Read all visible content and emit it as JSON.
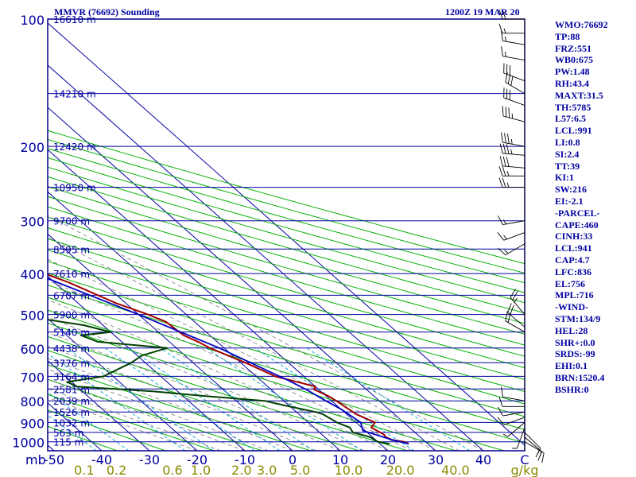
{
  "header": {
    "title": "MMVR (76692) Sounding",
    "time": "1200Z 19 MAR 20"
  },
  "indices": [
    "WMO:76692",
    "TP:88",
    "FRZ:551",
    "WB0:675",
    "PW:1.48",
    "RH:43.4",
    "MAXT:31.5",
    "TH:5785",
    "L57:6.5",
    "LCL:991",
    "LI:0.8",
    "SI:2.4",
    "TT:39",
    "KI:1",
    "SW:216",
    "EI:-2.1",
    "-PARCEL-",
    "CAPE:460",
    "CINH:33",
    "LCL:941",
    "CAP:4.7",
    "LFC:836",
    "EL:756",
    "MPL:716",
    "-WIND-",
    "STM:134/9",
    "HEL:28",
    "SHR+:0.0",
    "SRDS:-99",
    "EHI:0.1",
    "BRN:1520.4",
    "BSHR:0"
  ],
  "colors": {
    "isobar": "#0000a0",
    "isotherm": "#0000a0",
    "dry_adiabat": "#00b000",
    "moist_adiabat": "#7a7a7a",
    "mixing_ratio": "#00a0d0",
    "temperature": "#a00000",
    "dewpoint": "#004000",
    "parcel": "#0000c0",
    "wind": "#000000",
    "border": "#00008b"
  },
  "chart_data": {
    "type": "line",
    "title": "MMVR (76692) Sounding",
    "xlabel": "mb",
    "pressure_ticks": [
      "100",
      "200",
      "300",
      "400",
      "500",
      "600",
      "700",
      "800",
      "900",
      "1000"
    ],
    "temperature_ticks": [
      "-50",
      "-40",
      "-30",
      "-20",
      "-10",
      "0",
      "10",
      "20",
      "30",
      "40",
      "C"
    ],
    "mixing_ratio_ticks": [
      "0.1",
      "0.2",
      "0.6",
      "1.0",
      "2.0",
      "3.0",
      "5.0",
      "10.0",
      "20.0",
      "40.0",
      "g/kg"
    ],
    "height_labels": [
      {
        "p": 100,
        "label": "16610 m"
      },
      {
        "p": 150,
        "label": "14210 m"
      },
      {
        "p": 200,
        "label": "12420 m"
      },
      {
        "p": 250,
        "label": "10950 m"
      },
      {
        "p": 300,
        "label": "9700 m"
      },
      {
        "p": 350,
        "label": "8595 m"
      },
      {
        "p": 400,
        "label": "7610 m"
      },
      {
        "p": 450,
        "label": "6707 m"
      },
      {
        "p": 500,
        "label": "5900 m"
      },
      {
        "p": 550,
        "label": "5140 m"
      },
      {
        "p": 600,
        "label": "4438 m"
      },
      {
        "p": 650,
        "label": "3776 m"
      },
      {
        "p": 700,
        "label": "3164 m"
      },
      {
        "p": 750,
        "label": "2581 m"
      },
      {
        "p": 800,
        "label": "2039 m"
      },
      {
        "p": 850,
        "label": "1526 m"
      },
      {
        "p": 900,
        "label": "1032 m"
      },
      {
        "p": 950,
        "label": "563 m"
      },
      {
        "p": 1000,
        "label": "115 m"
      }
    ],
    "series": [
      {
        "name": "temperature",
        "points": [
          [
            1011,
            26
          ],
          [
            1000,
            25.5
          ],
          [
            990,
            23.5
          ],
          [
            975,
            22.8
          ],
          [
            960,
            23
          ],
          [
            925,
            22
          ],
          [
            900,
            24
          ],
          [
            860,
            22
          ],
          [
            800,
            21
          ],
          [
            780,
            20.5
          ],
          [
            752,
            19
          ],
          [
            740,
            20
          ],
          [
            700,
            14
          ],
          [
            650,
            11
          ],
          [
            600,
            7
          ],
          [
            580,
            6
          ],
          [
            560,
            4.5
          ],
          [
            520,
            4
          ],
          [
            500,
            2
          ],
          [
            470,
            -2
          ],
          [
            450,
            -4
          ],
          [
            420,
            -7
          ],
          [
            400,
            -10
          ],
          [
            370,
            -13
          ],
          [
            350,
            -16
          ],
          [
            320,
            -21
          ],
          [
            300,
            -25
          ],
          [
            270,
            -29
          ],
          [
            250,
            -34
          ],
          [
            220,
            -38
          ],
          [
            200,
            -44
          ],
          [
            180,
            -46
          ],
          [
            160,
            -51
          ],
          [
            150,
            -56
          ],
          [
            140,
            -58
          ],
          [
            128,
            -58
          ],
          [
            115,
            -60
          ],
          [
            100,
            -61
          ]
        ]
      },
      {
        "name": "dewpoint",
        "points": [
          [
            1011,
            22
          ],
          [
            1000,
            20
          ],
          [
            975,
            19.5
          ],
          [
            950,
            17
          ],
          [
            925,
            17.5
          ],
          [
            900,
            16
          ],
          [
            860,
            15
          ],
          [
            850,
            14
          ],
          [
            820,
            9
          ],
          [
            800,
            6
          ],
          [
            780,
            -5
          ],
          [
            760,
            -15
          ],
          [
            740,
            -30
          ],
          [
            722,
            -31
          ],
          [
            700,
            -22
          ],
          [
            650,
            -13
          ],
          [
            625,
            -9
          ],
          [
            600,
            -2
          ],
          [
            580,
            -15
          ],
          [
            560,
            -17
          ],
          [
            550,
            -10
          ],
          [
            530,
            -14
          ],
          [
            510,
            -22
          ],
          [
            500,
            -28
          ],
          [
            480,
            -30
          ],
          [
            460,
            -28
          ],
          [
            430,
            -26
          ],
          [
            400,
            -25
          ],
          [
            380,
            -26
          ],
          [
            360,
            -29
          ],
          [
            345,
            -37
          ],
          [
            340,
            -31
          ],
          [
            330,
            -24
          ],
          [
            320,
            -20
          ],
          [
            305,
            -15
          ],
          [
            290,
            -22
          ],
          [
            280,
            -18
          ],
          [
            275,
            -22
          ],
          [
            250,
            -42
          ],
          [
            230,
            -48
          ],
          [
            200,
            -56
          ],
          [
            180,
            -58
          ],
          [
            170,
            -60
          ],
          [
            150,
            -66
          ],
          [
            140,
            -69
          ],
          [
            130,
            -79
          ],
          [
            128,
            -82
          ],
          [
            118,
            -76
          ],
          [
            110,
            -72
          ],
          [
            104,
            -70
          ],
          [
            100,
            -68
          ]
        ]
      },
      {
        "name": "parcel",
        "points": [
          [
            1011,
            26
          ],
          [
            990,
            23.5
          ],
          [
            941,
            19.5
          ],
          [
            900,
            21
          ],
          [
            836,
            20
          ],
          [
            800,
            18.8
          ],
          [
            756,
            17.5
          ],
          [
            716,
            15.8
          ],
          [
            700,
            14.9
          ],
          [
            600,
            9
          ],
          [
            500,
            0
          ],
          [
            400,
            -12
          ],
          [
            350,
            -19
          ],
          [
            300,
            -27
          ],
          [
            250,
            -36
          ],
          [
            200,
            -48
          ],
          [
            150,
            -61
          ],
          [
            120,
            -68
          ],
          [
            100,
            -72
          ]
        ]
      }
    ],
    "winds": [
      {
        "p": 1000,
        "dir": 120,
        "spd": 15
      },
      {
        "p": 975,
        "dir": 130,
        "spd": 15
      },
      {
        "p": 950,
        "dir": 135,
        "spd": 10
      },
      {
        "p": 925,
        "dir": 200,
        "spd": 5
      },
      {
        "p": 900,
        "dir": 230,
        "spd": 5
      },
      {
        "p": 875,
        "dir": 250,
        "spd": 10
      },
      {
        "p": 850,
        "dir": 260,
        "spd": 10
      },
      {
        "p": 825,
        "dir": 270,
        "spd": 10
      },
      {
        "p": 800,
        "dir": 280,
        "spd": 10
      },
      {
        "p": 550,
        "dir": 300,
        "spd": 20
      },
      {
        "p": 535,
        "dir": 310,
        "spd": 20
      },
      {
        "p": 500,
        "dir": 320,
        "spd": 25
      },
      {
        "p": 340,
        "dir": 240,
        "spd": 15
      },
      {
        "p": 320,
        "dir": 250,
        "spd": 15
      },
      {
        "p": 300,
        "dir": 260,
        "spd": 15
      },
      {
        "p": 250,
        "dir": 270,
        "spd": 25
      },
      {
        "p": 235,
        "dir": 270,
        "spd": 25
      },
      {
        "p": 225,
        "dir": 275,
        "spd": 30
      },
      {
        "p": 210,
        "dir": 275,
        "spd": 35
      },
      {
        "p": 200,
        "dir": 280,
        "spd": 35
      },
      {
        "p": 175,
        "dir": 285,
        "spd": 35
      },
      {
        "p": 160,
        "dir": 290,
        "spd": 30
      },
      {
        "p": 150,
        "dir": 300,
        "spd": 30
      },
      {
        "p": 140,
        "dir": 290,
        "spd": 30
      },
      {
        "p": 125,
        "dir": 280,
        "spd": 15
      },
      {
        "p": 115,
        "dir": 280,
        "spd": 15
      },
      {
        "p": 108,
        "dir": 270,
        "spd": 15
      },
      {
        "p": 100,
        "dir": 270,
        "spd": 20
      }
    ]
  }
}
